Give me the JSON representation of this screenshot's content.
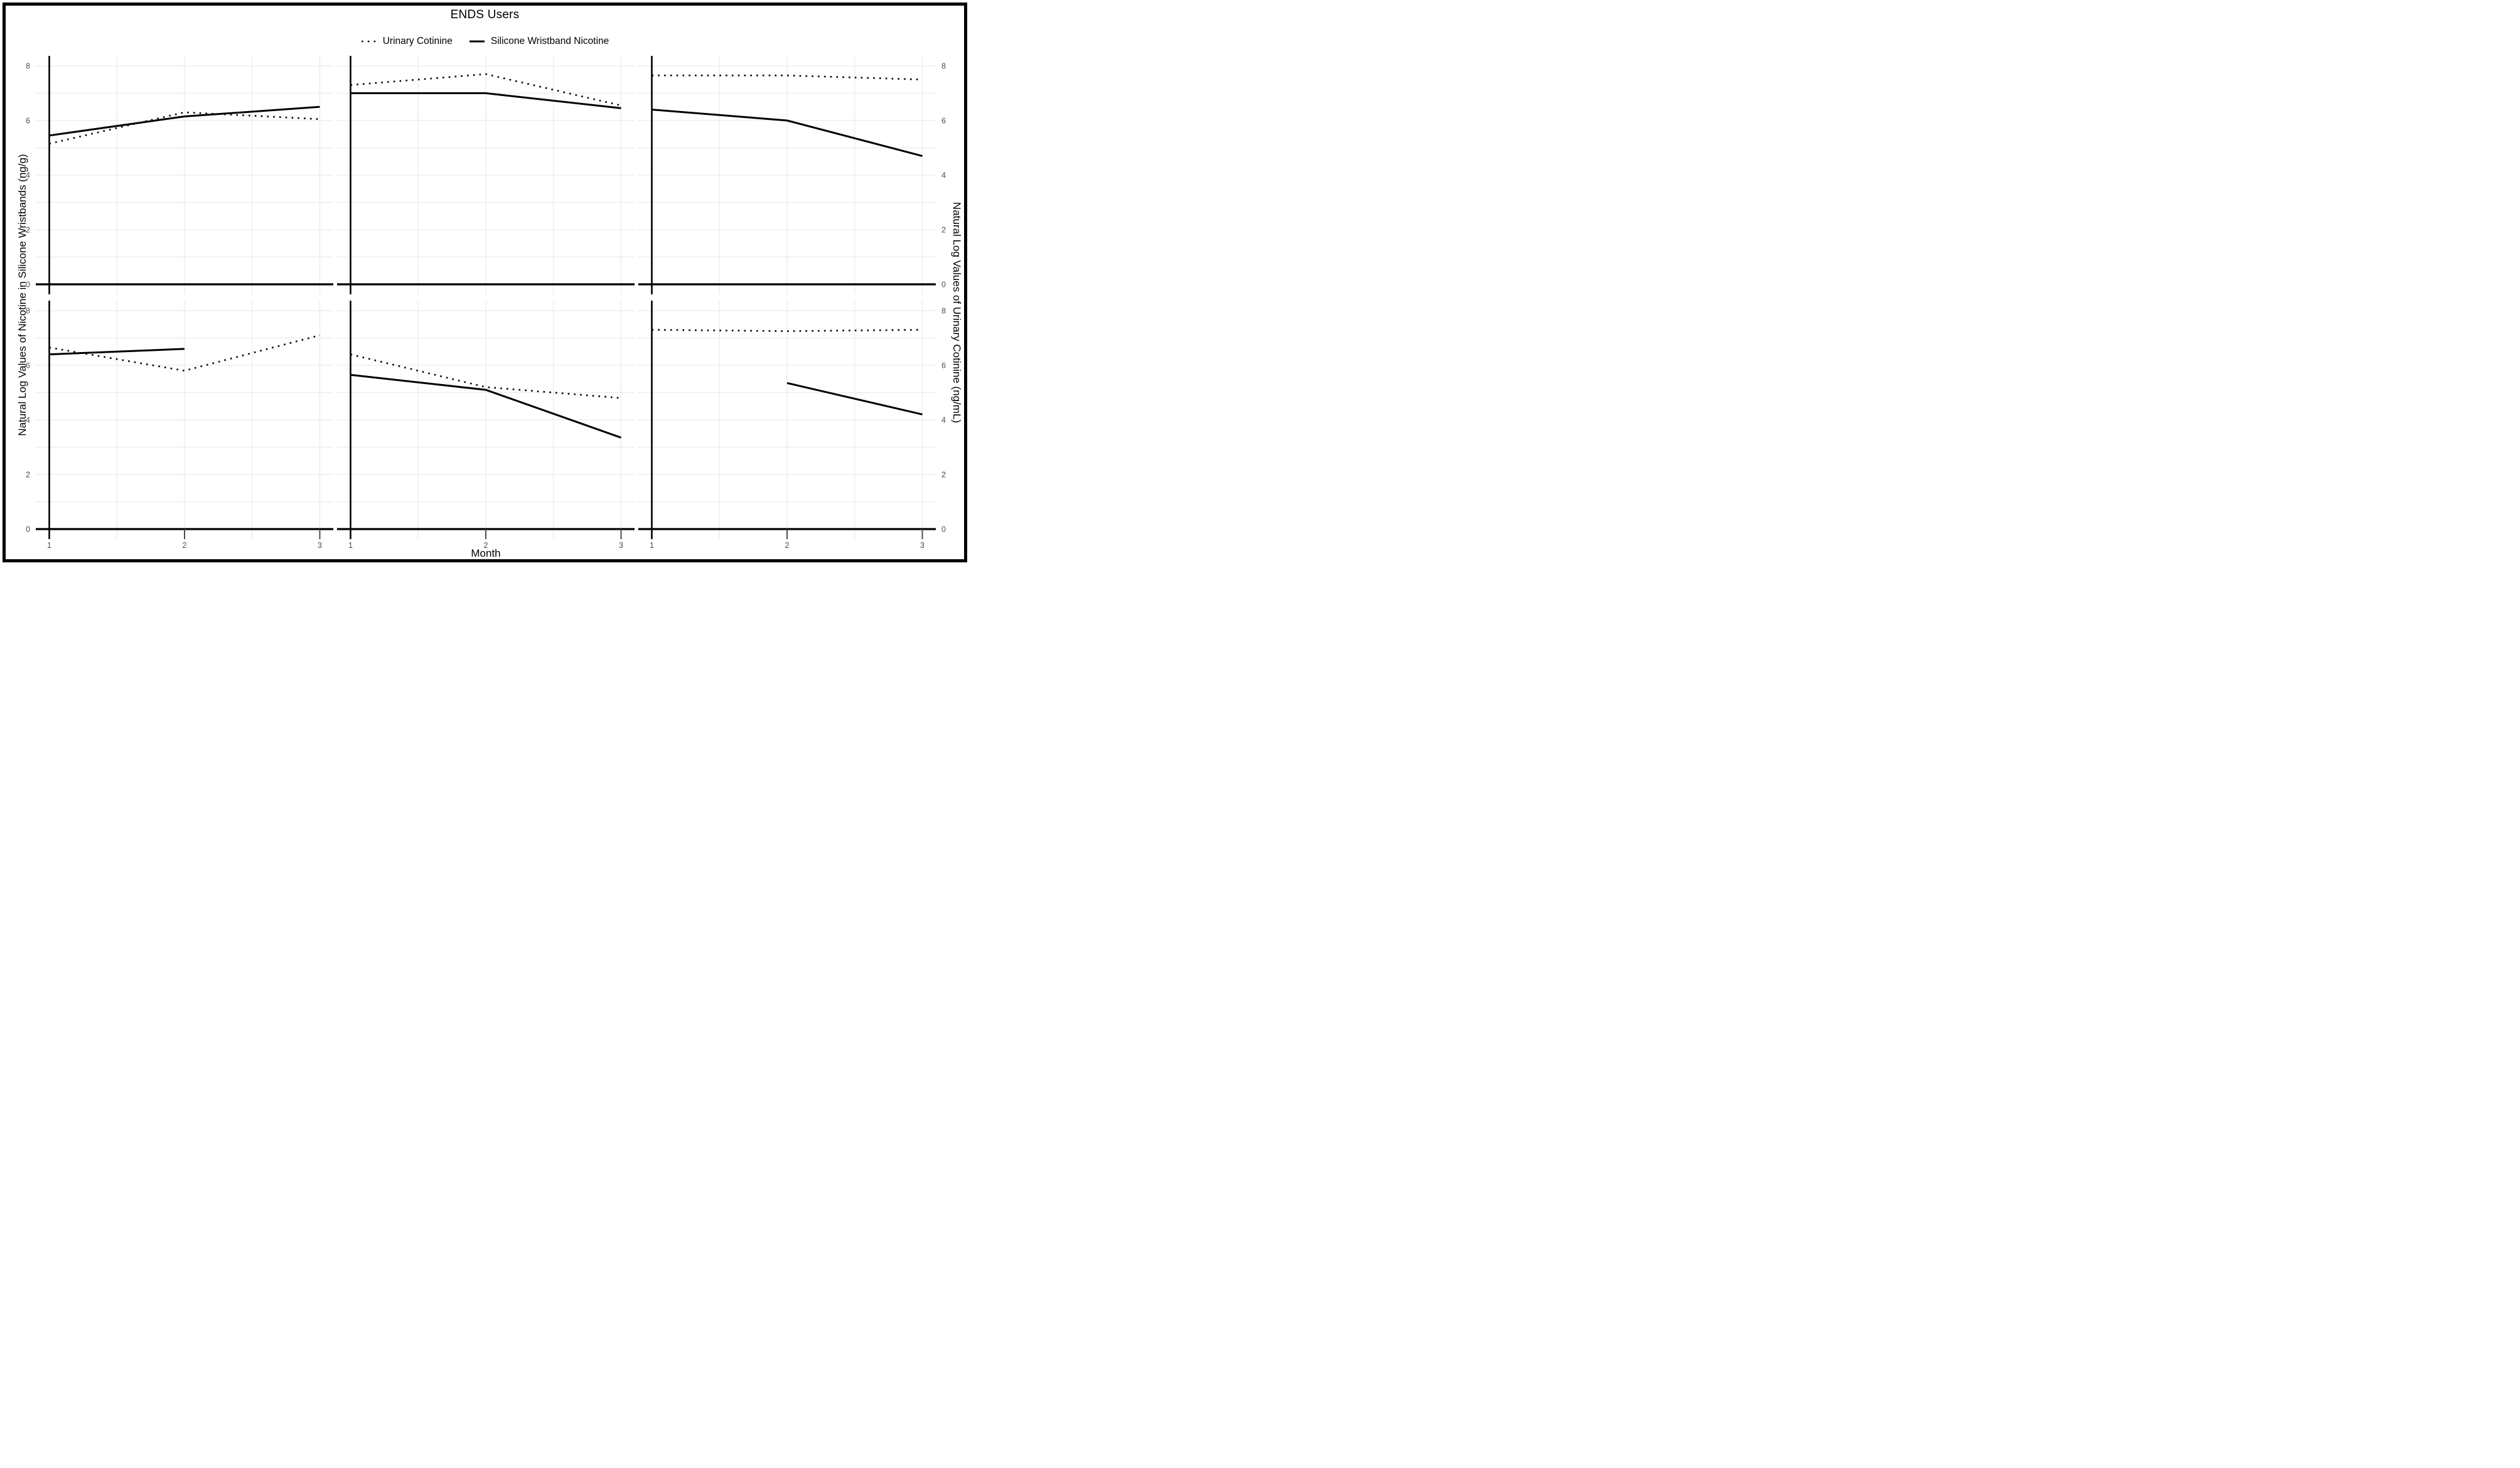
{
  "figure": {
    "background": "#ffffff",
    "border_color": "#000000"
  },
  "chart_data": {
    "type": "line",
    "title": "ENDS Users",
    "xlabel": "Month",
    "ylabel_left": "Natural Log Values of Nicotine in Silicone Wristbands (ng/g)",
    "ylabel_right": "Natural Log Values of Urinary Cotinine (ng/mL)",
    "x": [
      1,
      2,
      3
    ],
    "xticks": [
      1,
      2,
      3
    ],
    "ylim": [
      0,
      8
    ],
    "yticks": [
      0,
      2,
      4,
      6,
      8
    ],
    "grid": {
      "y_spacing": 1,
      "x_spacing": 0.5,
      "on": true,
      "color": "#ebebeb"
    },
    "legend_position": "top",
    "legend": [
      {
        "name": "Urinary Cotinine",
        "style": "dotted",
        "color": "#000000"
      },
      {
        "name": "Silicone Wristband Nicotine",
        "style": "solid",
        "color": "#000000"
      }
    ],
    "facets": {
      "rows": 2,
      "cols": 3
    },
    "panels": [
      {
        "row": 1,
        "col": 1,
        "series": [
          {
            "name": "Urinary Cotinine",
            "style": "dotted",
            "values": [
              5.15,
              6.3,
              6.05
            ]
          },
          {
            "name": "Silicone Wristband Nicotine",
            "style": "solid",
            "values": [
              5.45,
              6.15,
              6.5
            ]
          }
        ]
      },
      {
        "row": 1,
        "col": 2,
        "series": [
          {
            "name": "Urinary Cotinine",
            "style": "dotted",
            "values": [
              7.3,
              7.7,
              6.55
            ]
          },
          {
            "name": "Silicone Wristband Nicotine",
            "style": "solid",
            "values": [
              7.0,
              7.0,
              6.45
            ]
          }
        ]
      },
      {
        "row": 1,
        "col": 3,
        "series": [
          {
            "name": "Urinary Cotinine",
            "style": "dotted",
            "values": [
              7.65,
              7.65,
              7.5
            ]
          },
          {
            "name": "Silicone Wristband Nicotine",
            "style": "solid",
            "values": [
              6.4,
              6.0,
              4.7
            ]
          }
        ]
      },
      {
        "row": 2,
        "col": 1,
        "series": [
          {
            "name": "Urinary Cotinine",
            "style": "dotted",
            "values": [
              6.65,
              5.8,
              7.1
            ]
          },
          {
            "name": "Silicone Wristband Nicotine",
            "style": "solid",
            "values": [
              6.4,
              6.6,
              null
            ]
          }
        ]
      },
      {
        "row": 2,
        "col": 2,
        "series": [
          {
            "name": "Urinary Cotinine",
            "style": "dotted",
            "values": [
              6.4,
              5.2,
              4.8
            ]
          },
          {
            "name": "Silicone Wristband Nicotine",
            "style": "solid",
            "values": [
              5.65,
              5.1,
              3.35
            ]
          }
        ]
      },
      {
        "row": 2,
        "col": 3,
        "series": [
          {
            "name": "Urinary Cotinine",
            "style": "dotted",
            "values": [
              7.3,
              7.25,
              7.3
            ]
          },
          {
            "name": "Silicone Wristband Nicotine",
            "style": "solid",
            "values": [
              null,
              5.35,
              4.2
            ]
          }
        ]
      }
    ],
    "colors": {
      "series_line": "#000000",
      "axis_line": "#000000",
      "grid_line": "#ebebeb",
      "tick_label": "#4d4d4d"
    }
  }
}
